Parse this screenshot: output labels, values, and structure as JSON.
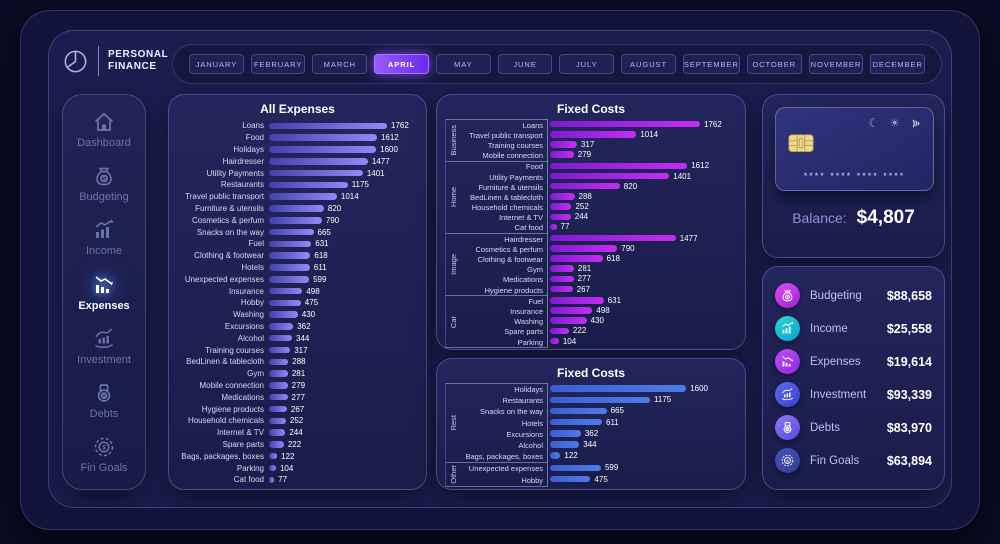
{
  "brand": {
    "line1": "PERSONAL",
    "line2": "FINANCE"
  },
  "months": {
    "items": [
      "JANUARY",
      "FEBRUARY",
      "MARCH",
      "APRIL",
      "MAY",
      "JUNE",
      "JULY",
      "AUGUST",
      "SEPTEMBER",
      "OCTOBER",
      "NOVEMBER",
      "DECEMBER"
    ],
    "selected": "APRIL"
  },
  "sidebar": {
    "items": [
      {
        "label": "Dashboard",
        "icon": "home-icon",
        "active": false
      },
      {
        "label": "Budgeting",
        "icon": "money-bag-icon",
        "active": false
      },
      {
        "label": "Income",
        "icon": "income-icon",
        "active": false
      },
      {
        "label": "Expenses",
        "icon": "expenses-icon",
        "active": true
      },
      {
        "label": "Investment",
        "icon": "investment-icon",
        "active": false
      },
      {
        "label": "Debts",
        "icon": "debts-icon",
        "active": false
      },
      {
        "label": "Fin Goals",
        "icon": "fin-goals-icon",
        "active": false
      }
    ]
  },
  "balance": {
    "label": "Balance:",
    "value": "$4,807",
    "card_number": "**** **** **** ****"
  },
  "summary": {
    "items": [
      {
        "label": "Budgeting",
        "value": "$88,658",
        "icon": "money-bag-icon",
        "c1": "#e04df0",
        "c2": "#9a22d8"
      },
      {
        "label": "Income",
        "value": "$25,558",
        "icon": "income-icon",
        "c1": "#2ad8c8",
        "c2": "#0f9fd8"
      },
      {
        "label": "Expenses",
        "value": "$19,614",
        "icon": "expenses-icon",
        "c1": "#c44df5",
        "c2": "#8a2ae0"
      },
      {
        "label": "Investment",
        "value": "$93,339",
        "icon": "investment-icon",
        "c1": "#5a6cf0",
        "c2": "#3a3fd0"
      },
      {
        "label": "Debts",
        "value": "$83,970",
        "icon": "debts-icon",
        "c1": "#8a7af5",
        "c2": "#5a48e0"
      },
      {
        "label": "Fin Goals",
        "value": "$63,894",
        "icon": "fin-goals-icon",
        "c1": "#4a52c0",
        "c2": "#333a8e"
      }
    ]
  },
  "chart_data": [
    {
      "type": "bar",
      "title": "All Expenses",
      "xlim": [
        0,
        1762
      ],
      "bar_colors": [
        "#4440ab",
        "#8f8af8"
      ],
      "categories": [
        "Loans",
        "Food",
        "Holidays",
        "Hairdresser",
        "Utility Payments",
        "Restaurants",
        "Travel public transport",
        "Furniture & utensils",
        "Cosmetics & perfum",
        "Snacks on the way",
        "Fuel",
        "Clothing & footwear",
        "Hotels",
        "Unexpected expenses",
        "Insurance",
        "Hobby",
        "Washing",
        "Excursions",
        "Alcohol",
        "Training courses",
        "BedLinen & tablecloth",
        "Gym",
        "Mobile connection",
        "Medications",
        "Hygiene products",
        "Household chemicals",
        "Internet & TV",
        "Spare parts",
        "Bags, packages, boxes",
        "Parking",
        "Cat food"
      ],
      "values": [
        1762,
        1612,
        1600,
        1477,
        1401,
        1175,
        1014,
        820,
        790,
        665,
        631,
        618,
        611,
        599,
        498,
        475,
        430,
        362,
        344,
        317,
        288,
        281,
        279,
        277,
        267,
        252,
        244,
        222,
        122,
        104,
        77
      ]
    },
    {
      "type": "bar",
      "title": "Fixed Costs",
      "xlim": [
        0,
        1762
      ],
      "bar_colors": [
        "#7d1bd1",
        "#c62df2"
      ],
      "groups": [
        {
          "name": "Business",
          "categories": [
            "Loans",
            "Travel public transport",
            "Training courses",
            "Mobile connection"
          ],
          "values": [
            1762,
            1014,
            317,
            279
          ]
        },
        {
          "name": "Home",
          "categories": [
            "Food",
            "Utility Payments",
            "Furniture & utensils",
            "BedLinen & tablecloth",
            "Household chemicals",
            "Internet & TV",
            "Cat food"
          ],
          "values": [
            1612,
            1401,
            820,
            288,
            252,
            244,
            77
          ]
        },
        {
          "name": "Image",
          "categories": [
            "Hairdresser",
            "Cosmetics & perfum",
            "Clothing & footwear",
            "Gym",
            "Medications",
            "Hygiene products"
          ],
          "values": [
            1477,
            790,
            618,
            281,
            277,
            267
          ]
        },
        {
          "name": "Car",
          "categories": [
            "Fuel",
            "Insurance",
            "Washing",
            "Spare parts",
            "Parking"
          ],
          "values": [
            631,
            498,
            430,
            222,
            104
          ]
        }
      ]
    },
    {
      "type": "bar",
      "title": "Fixed Costs",
      "xlim": [
        0,
        1762
      ],
      "bar_colors": [
        "#3c5ecf",
        "#4e7ce8"
      ],
      "groups": [
        {
          "name": "Rest",
          "categories": [
            "Holidays",
            "Restaurants",
            "Snacks on the way",
            "Hotels",
            "Excursions",
            "Alcohol",
            "Bags, packages, boxes"
          ],
          "values": [
            1600,
            1175,
            665,
            611,
            362,
            344,
            122
          ]
        },
        {
          "name": "Other",
          "categories": [
            "Unexpected expenses",
            "Hobby"
          ],
          "values": [
            599,
            475
          ]
        }
      ]
    }
  ]
}
